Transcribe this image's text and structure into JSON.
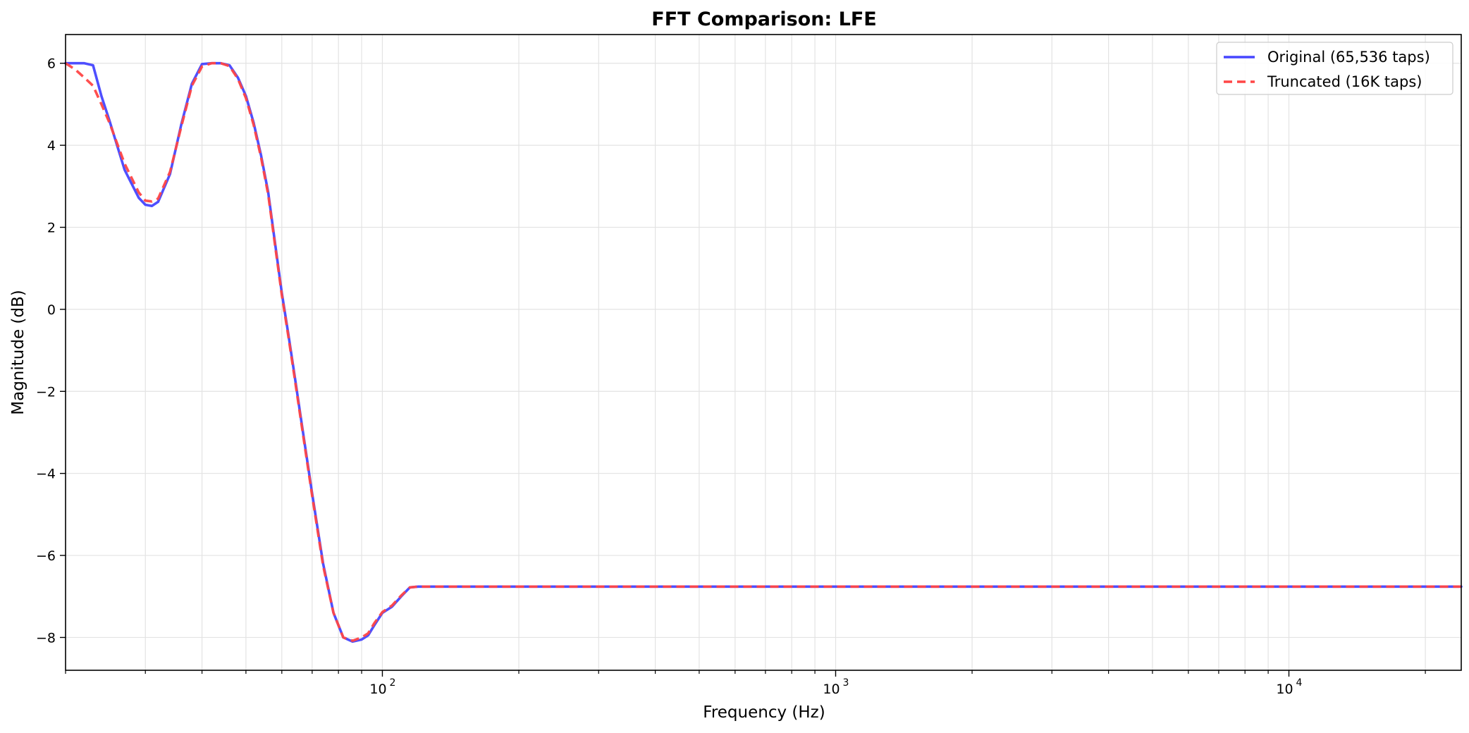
{
  "chart_data": {
    "type": "line",
    "title": "FFT Comparison: LFE",
    "xlabel": "Frequency (Hz)",
    "ylabel": "Magnitude (dB)",
    "xscale": "log",
    "xlim": [
      20,
      24000
    ],
    "ylim": [
      -8.8,
      6.7
    ],
    "xticks": [
      {
        "value": 100,
        "base": "10",
        "exp": "2"
      },
      {
        "value": 1000,
        "base": "10",
        "exp": "3"
      },
      {
        "value": 10000,
        "base": "10",
        "exp": "4"
      }
    ],
    "yticks": [
      {
        "value": 6,
        "label": "6"
      },
      {
        "value": 4,
        "label": "4"
      },
      {
        "value": 2,
        "label": "2"
      },
      {
        "value": 0,
        "label": "0"
      },
      {
        "value": -2,
        "label": "−2"
      },
      {
        "value": -4,
        "label": "−4"
      },
      {
        "value": -6,
        "label": "−6"
      },
      {
        "value": -8,
        "label": "−8"
      }
    ],
    "grid": true,
    "legend_position": "top-right",
    "series": [
      {
        "name": "Original (65,536 taps)",
        "color": "#4646ff",
        "style": "solid",
        "x": [
          20,
          22,
          23,
          24,
          25,
          27,
          29,
          30,
          31,
          32,
          34,
          36,
          38,
          40,
          42,
          44,
          46,
          48,
          50,
          52,
          54,
          56,
          58,
          60,
          62,
          64,
          66,
          70,
          74,
          78,
          82,
          86,
          90,
          93,
          96,
          100,
          105,
          110,
          115,
          120,
          125,
          150,
          500,
          2000,
          10000,
          24000
        ],
        "y": [
          6.0,
          6.0,
          5.95,
          5.2,
          4.6,
          3.4,
          2.72,
          2.55,
          2.52,
          2.62,
          3.3,
          4.5,
          5.5,
          5.98,
          6.0,
          6.0,
          5.95,
          5.65,
          5.2,
          4.55,
          3.75,
          2.85,
          1.6,
          0.4,
          -0.6,
          -1.6,
          -2.6,
          -4.5,
          -6.2,
          -7.4,
          -8.0,
          -8.1,
          -8.05,
          -7.95,
          -7.7,
          -7.4,
          -7.25,
          -7.0,
          -6.78,
          -6.76,
          -6.76,
          -6.76,
          -6.76,
          -6.76,
          -6.76,
          -6.76
        ]
      },
      {
        "name": "Truncated (16K taps)",
        "color": "#ff4646",
        "style": "dashed",
        "x": [
          20,
          21,
          22,
          23,
          24,
          25,
          27,
          29,
          30,
          31,
          32,
          34,
          36,
          38,
          40,
          42,
          44,
          46,
          48,
          50,
          52,
          54,
          56,
          58,
          60,
          62,
          64,
          66,
          70,
          74,
          78,
          82,
          86,
          90,
          93,
          96,
          100,
          105,
          110,
          115,
          120,
          125,
          150,
          500,
          2000,
          10000,
          24000
        ],
        "y": [
          6.0,
          5.85,
          5.65,
          5.45,
          5.0,
          4.55,
          3.55,
          2.85,
          2.65,
          2.63,
          2.7,
          3.35,
          4.45,
          5.45,
          5.92,
          6.0,
          6.0,
          5.93,
          5.62,
          5.15,
          4.5,
          3.7,
          2.8,
          1.55,
          0.35,
          -0.65,
          -1.65,
          -2.65,
          -4.55,
          -6.25,
          -7.4,
          -8.0,
          -8.08,
          -8.0,
          -7.9,
          -7.65,
          -7.38,
          -7.22,
          -6.98,
          -6.78,
          -6.76,
          -6.76,
          -6.76,
          -6.76,
          -6.76,
          -6.76,
          -6.76
        ]
      }
    ]
  }
}
